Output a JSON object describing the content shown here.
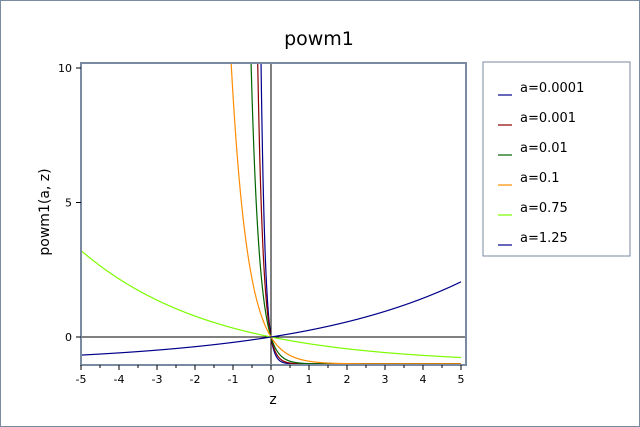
{
  "chart_data": {
    "type": "line",
    "title": "powm1",
    "xlabel": "z",
    "ylabel": "powm1(a, z)",
    "xlim": [
      -5,
      5
    ],
    "ylim": [
      -1,
      10
    ],
    "xticks": [
      "-5",
      "-4",
      "-3",
      "-2",
      "-1",
      "0",
      "1",
      "2",
      "3",
      "4",
      "5"
    ],
    "yticks": [
      "0",
      "5",
      "10"
    ],
    "grid": false,
    "legend_position": "right",
    "function": "a^z - 1",
    "series": [
      {
        "name": "a=0.0001",
        "a": 0.0001,
        "color": "#00008b"
      },
      {
        "name": "a=0.001",
        "a": 0.001,
        "color": "#8b0000"
      },
      {
        "name": "a=0.01",
        "a": 0.01,
        "color": "#006400"
      },
      {
        "name": "a=0.1",
        "a": 0.1,
        "color": "#ff8c00"
      },
      {
        "name": "a=0.75",
        "a": 0.75,
        "color": "#7cfc00"
      },
      {
        "name": "a=1.25",
        "a": 1.25,
        "color": "#00008b"
      }
    ]
  }
}
